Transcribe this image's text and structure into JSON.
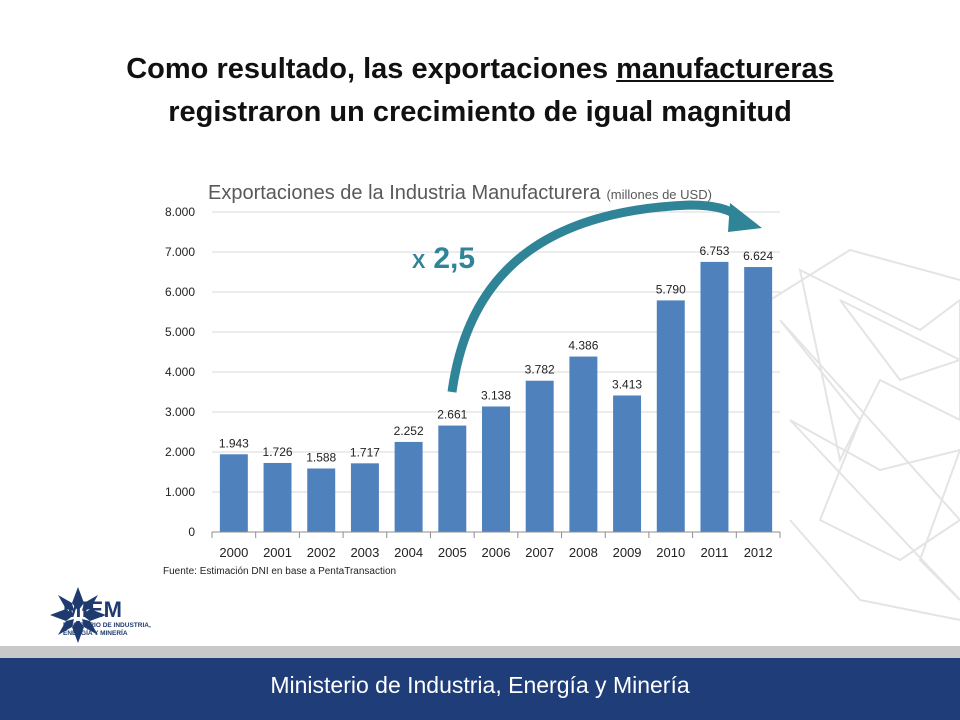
{
  "slide": {
    "title_line1_prefix": "Como resultado, las exportaciones ",
    "title_line1_underlined": "manufactureras",
    "title_line2": "registraron un crecimiento de igual magnitud"
  },
  "annotation": {
    "prefix": "X",
    "value": "2,5",
    "color": "#2f8497"
  },
  "logo": {
    "name": "MIEM",
    "subtitle_1": "MINISTERIO DE INDUSTRIA,",
    "subtitle_2": "ENERGÍA Y MINERÍA",
    "color": "#1e3a6e"
  },
  "footer": {
    "text": "Ministerio de Industria, Energía y Minería",
    "bg": "#1f3d78"
  },
  "chart_data": {
    "type": "bar",
    "title": "Exportaciones de la Industria Manufacturera",
    "title_suffix": "(millones de USD)",
    "source": "Fuente: Estimación DNI en base a PentaTransaction",
    "categories": [
      "2000",
      "2001",
      "2002",
      "2003",
      "2004",
      "2005",
      "2006",
      "2007",
      "2008",
      "2009",
      "2010",
      "2011",
      "2012"
    ],
    "values": [
      1943,
      1726,
      1588,
      1717,
      2252,
      2661,
      3138,
      3782,
      4386,
      3413,
      5790,
      6753,
      6624
    ],
    "value_labels": [
      "1.943",
      "1.726",
      "1.588",
      "1.717",
      "2.252",
      "2.661",
      "3.138",
      "3.782",
      "4.386",
      "3.413",
      "5.790",
      "6.753",
      "6.624"
    ],
    "y_ticks": [
      0,
      1000,
      2000,
      3000,
      4000,
      5000,
      6000,
      7000,
      8000
    ],
    "y_tick_labels": [
      "0",
      "1.000",
      "2.000",
      "3.000",
      "4.000",
      "5.000",
      "6.000",
      "7.000",
      "8.000"
    ],
    "ylim": [
      0,
      8000
    ],
    "grid": true,
    "bar_color": "#4f81bd",
    "xlabel": "",
    "ylabel": ""
  }
}
